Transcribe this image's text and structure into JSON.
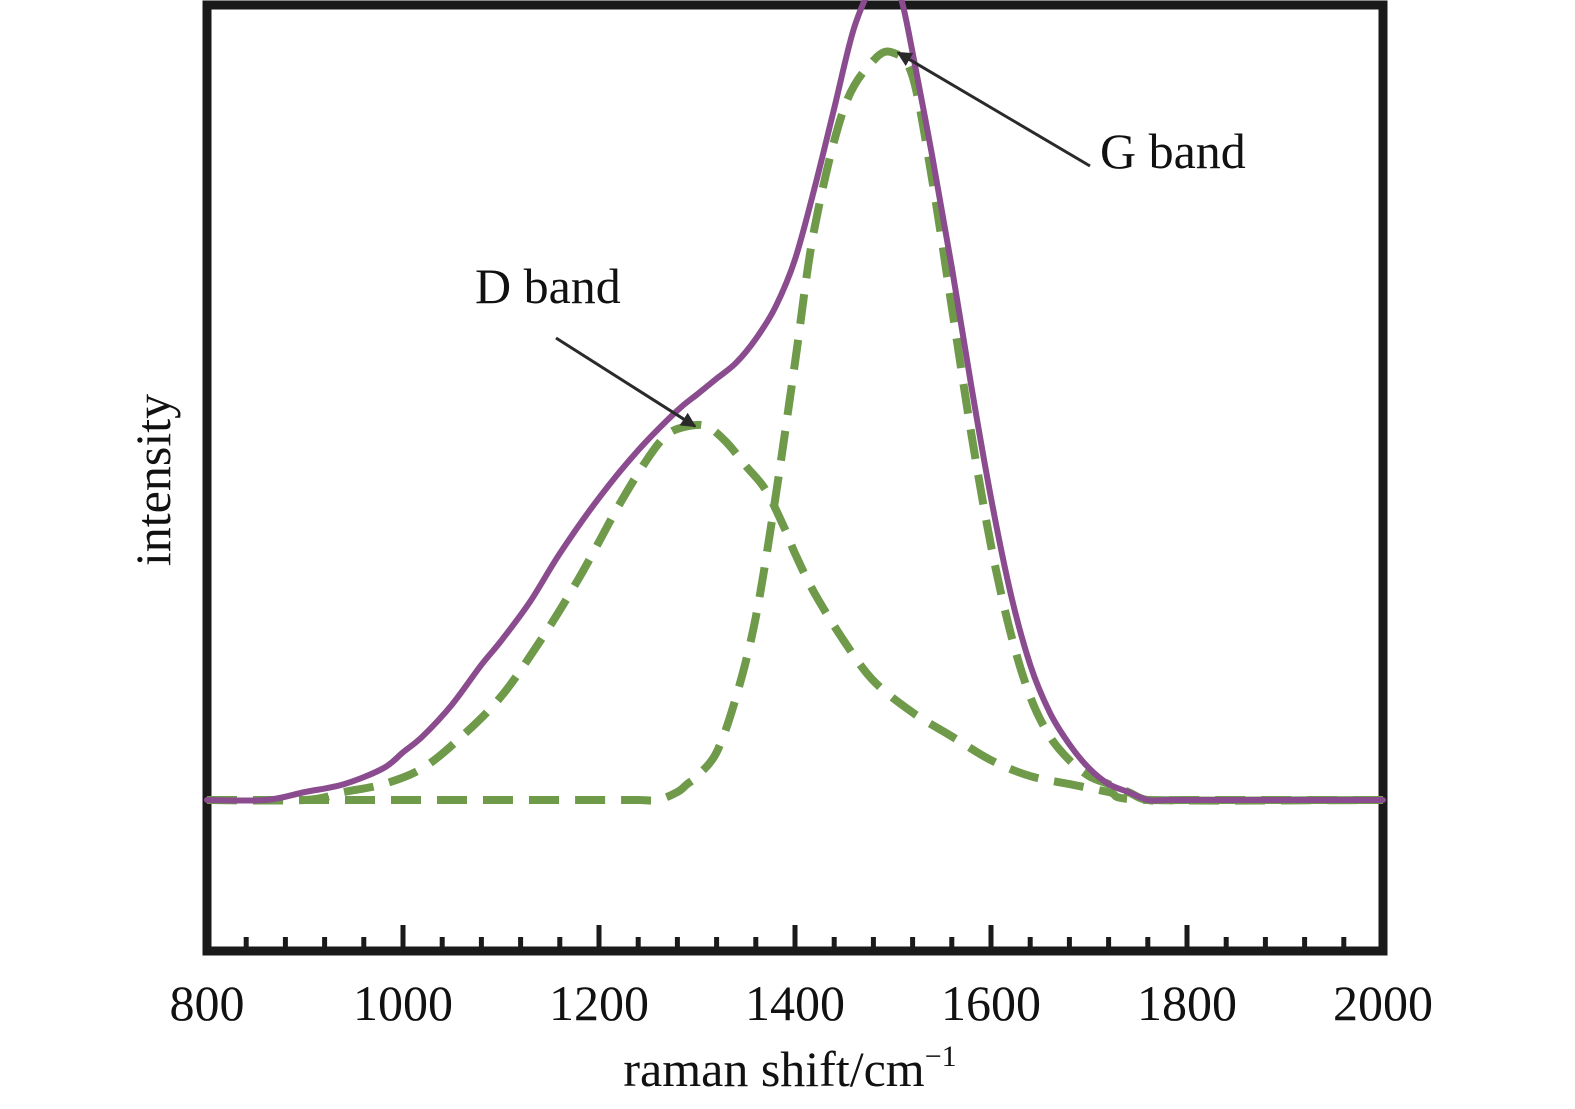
{
  "chart_data": {
    "type": "line",
    "title": "",
    "xlabel": "raman shift/cm",
    "xlabel_superscript": "−1",
    "ylabel": "intensity",
    "xlim": [
      800,
      2000
    ],
    "ylim": [
      -0.19,
      1.0
    ],
    "x_ticks": [
      800,
      1000,
      1200,
      1400,
      1600,
      1800,
      2000
    ],
    "x_minor_step": 40,
    "grid": false,
    "y_tick_labels_shown": false,
    "series": [
      {
        "style": "solid",
        "color": "#8a4c8e",
        "x": [
          800,
          860,
          900,
          940,
          980,
          1000,
          1020,
          1050,
          1080,
          1100,
          1130,
          1160,
          1200,
          1240,
          1280,
          1300,
          1320,
          1340,
          1360,
          1380,
          1400,
          1420,
          1440,
          1460,
          1480,
          1490,
          1500,
          1510,
          1520,
          1540,
          1560,
          1580,
          1600,
          1620,
          1640,
          1660,
          1680,
          1700,
          1720,
          1740,
          1760,
          1780,
          1800,
          1900,
          2000
        ],
        "y": [
          0.0,
          0.0,
          0.01,
          0.02,
          0.04,
          0.06,
          0.08,
          0.12,
          0.17,
          0.2,
          0.25,
          0.31,
          0.38,
          0.44,
          0.49,
          0.51,
          0.53,
          0.55,
          0.58,
          0.62,
          0.68,
          0.77,
          0.87,
          0.97,
          1.03,
          1.05,
          1.04,
          1.0,
          0.94,
          0.81,
          0.67,
          0.52,
          0.38,
          0.26,
          0.17,
          0.11,
          0.07,
          0.04,
          0.02,
          0.01,
          0.0,
          0.0,
          0.0,
          0.0,
          0.0
        ]
      },
      {
        "style": "dashed",
        "color": "#6e9a4a",
        "x": [
          800,
          900,
          1000,
          1100,
          1200,
          1240,
          1260,
          1280,
          1290,
          1300,
          1320,
          1340,
          1360,
          1380,
          1400,
          1420,
          1450,
          1480,
          1500,
          1520,
          1540,
          1560,
          1580,
          1600,
          1620,
          1640,
          1660,
          1680,
          1700,
          1720,
          1740,
          1760,
          1800,
          2000
        ],
        "y": [
          0.0,
          0.0,
          0.0,
          0.0,
          0.0,
          0.0,
          0.0,
          0.01,
          0.02,
          0.03,
          0.06,
          0.13,
          0.23,
          0.38,
          0.55,
          0.72,
          0.87,
          0.93,
          0.94,
          0.91,
          0.78,
          0.62,
          0.46,
          0.32,
          0.21,
          0.13,
          0.08,
          0.05,
          0.03,
          0.02,
          0.01,
          0.0,
          0.0,
          0.0
        ]
      },
      {
        "style": "dashed",
        "color": "#6e9a4a",
        "x": [
          800,
          900,
          940,
          980,
          1020,
          1060,
          1100,
          1140,
          1180,
          1220,
          1250,
          1270,
          1290,
          1310,
          1330,
          1350,
          1370,
          1390,
          1400,
          1420,
          1450,
          1480,
          1520,
          1560,
          1600,
          1640,
          1680,
          1720,
          1760,
          2000
        ],
        "y": [
          0.0,
          0.0,
          0.01,
          0.02,
          0.04,
          0.08,
          0.13,
          0.2,
          0.28,
          0.37,
          0.43,
          0.46,
          0.47,
          0.47,
          0.45,
          0.42,
          0.39,
          0.34,
          0.31,
          0.26,
          0.2,
          0.15,
          0.11,
          0.08,
          0.05,
          0.03,
          0.02,
          0.01,
          0.0,
          0.0
        ]
      }
    ],
    "annotations": [
      {
        "text": "D band",
        "arrow_to": [
          1298,
          0.47
        ]
      },
      {
        "text": "G band",
        "arrow_to": [
          1505,
          0.94
        ]
      }
    ],
    "frame_color": "#1a1a1a",
    "arrow_color": "#2a2a2a"
  }
}
